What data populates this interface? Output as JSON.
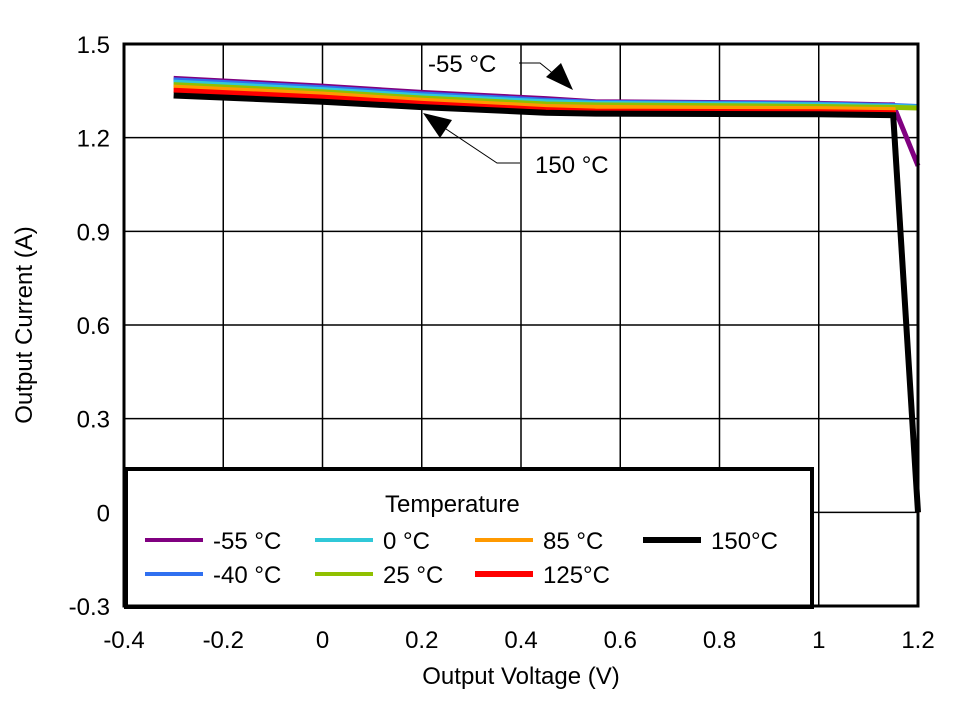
{
  "chart_data": {
    "type": "line",
    "title": "",
    "xlabel": "Output Voltage (V)",
    "ylabel": "Output Current (A)",
    "xlim": [
      -0.4,
      1.2
    ],
    "ylim": [
      -0.3,
      1.5
    ],
    "xticks": [
      -0.4,
      -0.2,
      0,
      0.2,
      0.4,
      0.6,
      0.8,
      1,
      1.2
    ],
    "xtick_labels": [
      "-0.4",
      "-0.2",
      "0",
      "0.2",
      "0.4",
      "0.6",
      "0.8",
      "1",
      "1.2"
    ],
    "yticks": [
      -0.3,
      0,
      0.3,
      0.6,
      0.9,
      1.2,
      1.5
    ],
    "ytick_labels": [
      "-0.3",
      "0",
      "0.3",
      "0.6",
      "0.9",
      "1.2",
      "1.5"
    ],
    "grid": true,
    "legend": {
      "title": "Temperature",
      "placement": "bottom-left"
    },
    "x": [
      -0.3,
      0,
      0.2,
      0.45,
      0.55,
      1.0,
      1.15,
      1.2
    ],
    "series": [
      {
        "name": "-55 °C",
        "color": "#800080",
        "values": [
          1.39,
          1.365,
          1.345,
          1.325,
          1.315,
          1.31,
          1.305,
          1.11
        ]
      },
      {
        "name": "-40 °C",
        "color": "#3070f0",
        "values": [
          1.385,
          1.36,
          1.34,
          1.32,
          1.313,
          1.308,
          1.303,
          1.3
        ]
      },
      {
        "name": "0 °C",
        "color": "#30c8d8",
        "values": [
          1.378,
          1.354,
          1.334,
          1.315,
          1.31,
          1.305,
          1.3,
          1.298
        ]
      },
      {
        "name": "25 °C",
        "color": "#90c000",
        "values": [
          1.37,
          1.347,
          1.327,
          1.308,
          1.305,
          1.3,
          1.297,
          1.295
        ]
      },
      {
        "name": "85 °C",
        "color": "#ff9900",
        "values": [
          1.362,
          1.34,
          1.32,
          1.3,
          1.297,
          1.293,
          1.29,
          0.0
        ]
      },
      {
        "name": "125°C",
        "color": "#ff0000",
        "values": [
          1.352,
          1.33,
          1.31,
          1.29,
          1.285,
          1.283,
          1.28,
          0.0
        ]
      },
      {
        "name": "150°C",
        "color": "#000000",
        "values": [
          1.335,
          1.315,
          1.298,
          1.28,
          1.277,
          1.275,
          1.272,
          0.0
        ]
      }
    ],
    "annotations": [
      {
        "text": "-55 °C",
        "points_to": "-55 °C"
      },
      {
        "text": "150 °C",
        "points_to": "150°C"
      }
    ]
  }
}
